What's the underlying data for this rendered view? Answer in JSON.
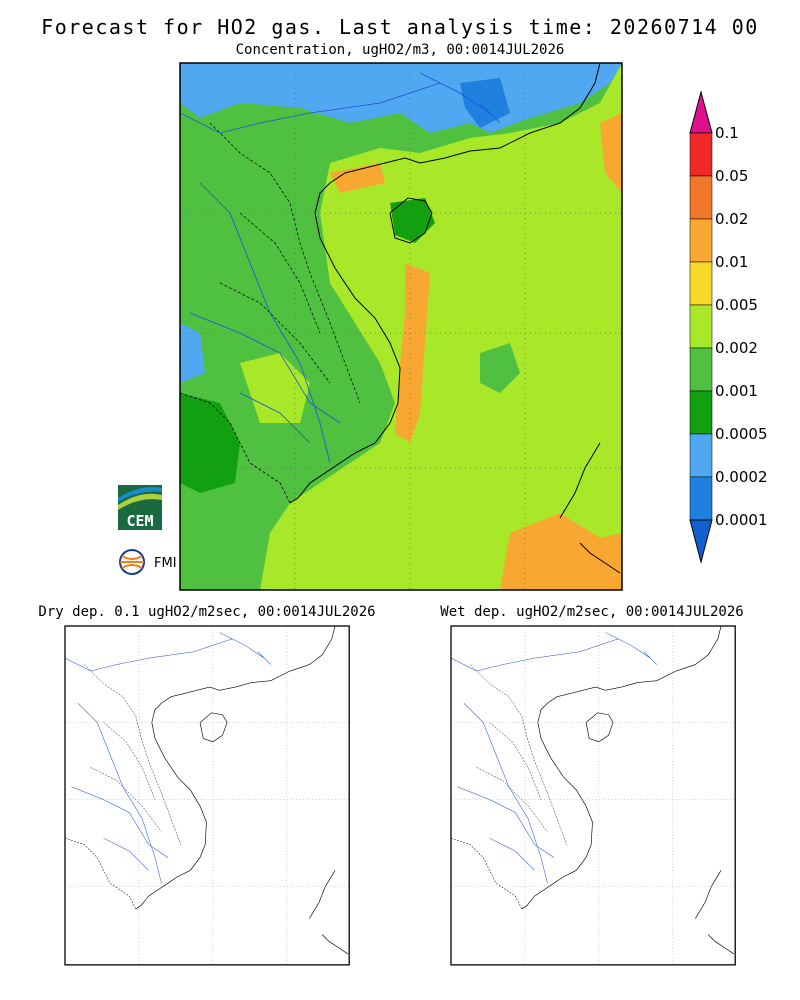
{
  "header": {
    "title": "Forecast for HO2 gas. Last analysis time: 20260714 00",
    "subtitle": "Concentration, ugHO2/m3, 00:0014JUL2026"
  },
  "legend": {
    "labels": [
      "0.1",
      "0.05",
      "0.02",
      "0.01",
      "0.005",
      "0.002",
      "0.001",
      "0.0005",
      "0.0002",
      "0.0001"
    ],
    "colors": [
      "#e0108c",
      "#f02828",
      "#f07828",
      "#f8a830",
      "#f8d828",
      "#a8e828",
      "#50c040",
      "#10a010",
      "#50a8f0",
      "#2080e0",
      "#1060d0"
    ]
  },
  "logos": {
    "cem": "CEM",
    "fmi": "FMI"
  },
  "panels": [
    {
      "title": "Dry dep. 0.1 ugHO2/m2sec, 00:0014JUL2026"
    },
    {
      "title": "Wet dep. ugHO2/m2sec, 00:0014JUL2026"
    }
  ]
}
